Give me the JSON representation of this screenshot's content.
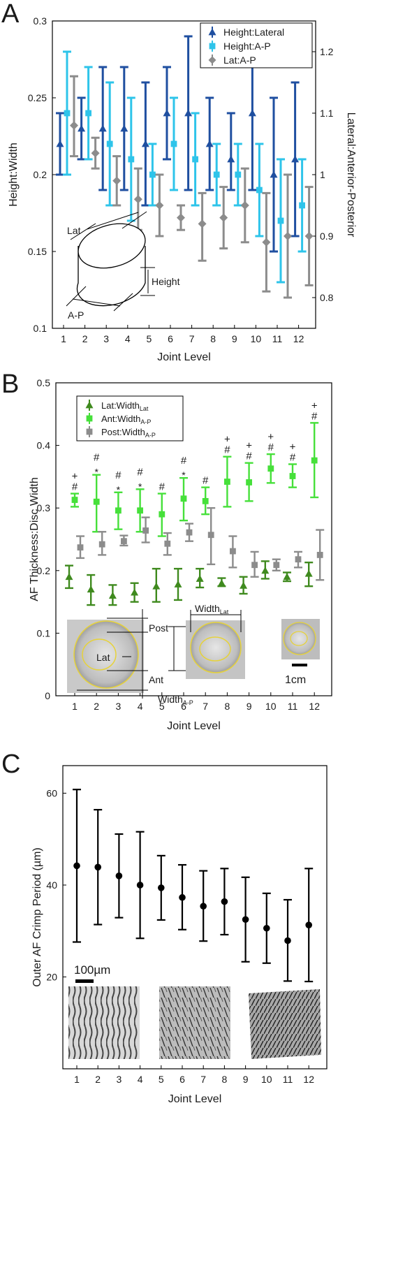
{
  "chart_data": [
    {
      "panel": "A",
      "type": "scatter",
      "error_bars": true,
      "xlabel": "Joint Level",
      "ylabel": "Height:Width",
      "y2label": "Lateral:Anterior-Posterior",
      "x": [
        "1",
        "2",
        "3",
        "4",
        "5",
        "6",
        "7",
        "8",
        "9",
        "10",
        "11",
        "12"
      ],
      "ylim": [
        0.1,
        0.3
      ],
      "y2lim": [
        0.75,
        1.25
      ],
      "yticks": [
        "0.1",
        "0.15",
        "0.2",
        "0.25",
        "0.3"
      ],
      "y2ticks": [
        "0.8",
        "0.9",
        "1",
        "1.1",
        "1.2"
      ],
      "legend_position": "top-right",
      "series": [
        {
          "name": "Height:Lateral",
          "axis": "left",
          "marker": "triangle",
          "color": "#1f4fa0",
          "values": [
            0.22,
            0.23,
            0.23,
            0.23,
            0.22,
            0.24,
            0.24,
            0.22,
            0.21,
            0.24,
            0.2,
            0.21
          ],
          "lower": [
            0.2,
            0.21,
            0.19,
            0.19,
            0.18,
            0.21,
            0.19,
            0.19,
            0.19,
            0.19,
            0.15,
            0.16
          ],
          "upper": [
            0.24,
            0.25,
            0.27,
            0.27,
            0.26,
            0.27,
            0.29,
            0.25,
            0.24,
            0.27,
            0.25,
            0.26
          ]
        },
        {
          "name": "Height:A-P",
          "axis": "left",
          "marker": "square",
          "color": "#2ec4ea",
          "values": [
            0.24,
            0.24,
            0.22,
            0.21,
            0.2,
            0.22,
            0.21,
            0.2,
            0.2,
            0.19,
            0.17,
            0.18
          ],
          "lower": [
            0.2,
            0.21,
            0.18,
            0.17,
            0.18,
            0.19,
            0.18,
            0.18,
            0.18,
            0.16,
            0.13,
            0.15
          ],
          "upper": [
            0.28,
            0.27,
            0.26,
            0.25,
            0.22,
            0.25,
            0.24,
            0.22,
            0.22,
            0.22,
            0.21,
            0.21
          ]
        },
        {
          "name": "Lat:A-P",
          "axis": "right",
          "marker": "diamond",
          "color": "#8c8c8c",
          "values": [
            1.08,
            1.035,
            0.99,
            0.96,
            0.95,
            0.93,
            0.92,
            0.93,
            0.95,
            0.89,
            0.9,
            0.9
          ],
          "lower": [
            1.03,
            1.01,
            0.95,
            0.91,
            0.9,
            0.91,
            0.86,
            0.88,
            0.89,
            0.81,
            0.8,
            0.82
          ],
          "upper": [
            1.16,
            1.06,
            1.03,
            1.01,
            1.0,
            0.95,
            0.97,
            0.98,
            1.01,
            0.97,
            1.0,
            0.98
          ]
        }
      ],
      "inset": {
        "labels": [
          "Lat",
          "Height",
          "A-P"
        ]
      }
    },
    {
      "panel": "B",
      "type": "scatter",
      "error_bars": true,
      "xlabel": "Joint Level",
      "ylabel": "AF Thickness:Disc Width",
      "x": [
        "1",
        "2",
        "3",
        "4",
        "5",
        "6",
        "7",
        "8",
        "9",
        "10",
        "11",
        "12"
      ],
      "ylim": [
        0,
        0.5
      ],
      "yticks": [
        "0",
        "0.1",
        "0.2",
        "0.3",
        "0.4",
        "0.5"
      ],
      "legend_position": "top-left",
      "series": [
        {
          "name": "Lat:Width",
          "name_sub": "Lat",
          "marker": "triangle",
          "color": "#3f8a1e",
          "values": [
            0.19,
            0.17,
            0.16,
            0.165,
            0.175,
            0.178,
            0.187,
            0.18,
            0.176,
            0.2,
            0.19,
            0.195
          ],
          "lower": [
            0.172,
            0.145,
            0.145,
            0.15,
            0.15,
            0.153,
            0.173,
            0.175,
            0.163,
            0.187,
            0.183,
            0.175
          ],
          "upper": [
            0.208,
            0.193,
            0.177,
            0.18,
            0.203,
            0.203,
            0.203,
            0.188,
            0.19,
            0.215,
            0.197,
            0.213
          ]
        },
        {
          "name": "Ant:Width",
          "name_sub": "A-P",
          "marker": "square",
          "color": "#46e03a",
          "values": [
            0.313,
            0.31,
            0.296,
            0.296,
            0.29,
            0.315,
            0.311,
            0.342,
            0.341,
            0.363,
            0.351,
            0.376
          ],
          "lower": [
            0.302,
            0.262,
            0.266,
            0.262,
            0.255,
            0.28,
            0.29,
            0.302,
            0.311,
            0.34,
            0.333,
            0.317
          ],
          "upper": [
            0.323,
            0.353,
            0.325,
            0.33,
            0.323,
            0.348,
            0.333,
            0.382,
            0.372,
            0.386,
            0.37,
            0.436
          ]
        },
        {
          "name": "Post:Width",
          "name_sub": "A-P",
          "marker": "square",
          "color": "#8c8c8c",
          "values": [
            0.237,
            0.242,
            0.247,
            0.264,
            0.243,
            0.261,
            0.257,
            0.231,
            0.209,
            0.209,
            0.218,
            0.225
          ],
          "lower": [
            0.22,
            0.225,
            0.24,
            0.245,
            0.225,
            0.247,
            0.21,
            0.205,
            0.19,
            0.2,
            0.205,
            0.185
          ],
          "upper": [
            0.255,
            0.262,
            0.256,
            0.285,
            0.26,
            0.275,
            0.3,
            0.255,
            0.23,
            0.218,
            0.23,
            0.265
          ]
        }
      ],
      "significance": [
        {
          "x": "1",
          "marks": [
            "+",
            "#"
          ]
        },
        {
          "x": "2",
          "marks": [
            "#",
            "*"
          ]
        },
        {
          "x": "3",
          "marks": [
            "#",
            "*"
          ]
        },
        {
          "x": "4",
          "marks": [
            "#",
            "*"
          ]
        },
        {
          "x": "5",
          "marks": [
            "#"
          ]
        },
        {
          "x": "6",
          "marks": [
            "#",
            "*"
          ]
        },
        {
          "x": "7",
          "marks": [
            "#"
          ]
        },
        {
          "x": "8",
          "marks": [
            "+",
            "#"
          ]
        },
        {
          "x": "9",
          "marks": [
            "+",
            "#"
          ]
        },
        {
          "x": "10",
          "marks": [
            "+",
            "#"
          ]
        },
        {
          "x": "11",
          "marks": [
            "+",
            "#"
          ]
        },
        {
          "x": "12",
          "marks": [
            "+",
            "#"
          ]
        }
      ],
      "inset": {
        "labels": [
          "Post",
          "Lat",
          "Ant",
          "Width",
          "Width",
          "1cm"
        ],
        "subscripts": [
          "",
          "",
          "",
          "A-P",
          "Lat",
          ""
        ]
      }
    },
    {
      "panel": "C",
      "type": "scatter",
      "error_bars": true,
      "xlabel": "Joint Level",
      "ylabel": "Outer AF Crimp Period (µm)",
      "x": [
        "1",
        "2",
        "3",
        "4",
        "5",
        "6",
        "7",
        "8",
        "9",
        "10",
        "11",
        "12"
      ],
      "ylim": [
        0,
        66
      ],
      "yticks": [
        "20",
        "40",
        "60"
      ],
      "series": [
        {
          "name": "",
          "marker": "circle",
          "color": "#000000",
          "values": [
            44.2,
            43.9,
            42.0,
            40.0,
            39.4,
            37.3,
            35.4,
            36.4,
            32.5,
            30.6,
            27.9,
            31.3
          ],
          "lower": [
            27.6,
            31.4,
            32.9,
            28.4,
            32.4,
            30.3,
            27.8,
            29.2,
            23.3,
            23.0,
            19.1,
            19.0
          ],
          "upper": [
            60.8,
            56.4,
            51.1,
            51.6,
            46.4,
            44.4,
            43.1,
            43.6,
            41.7,
            38.2,
            36.8,
            43.6
          ]
        }
      ],
      "inset": {
        "labels": [
          "100µm"
        ]
      }
    }
  ],
  "panel_labels": [
    "A",
    "B",
    "C"
  ]
}
